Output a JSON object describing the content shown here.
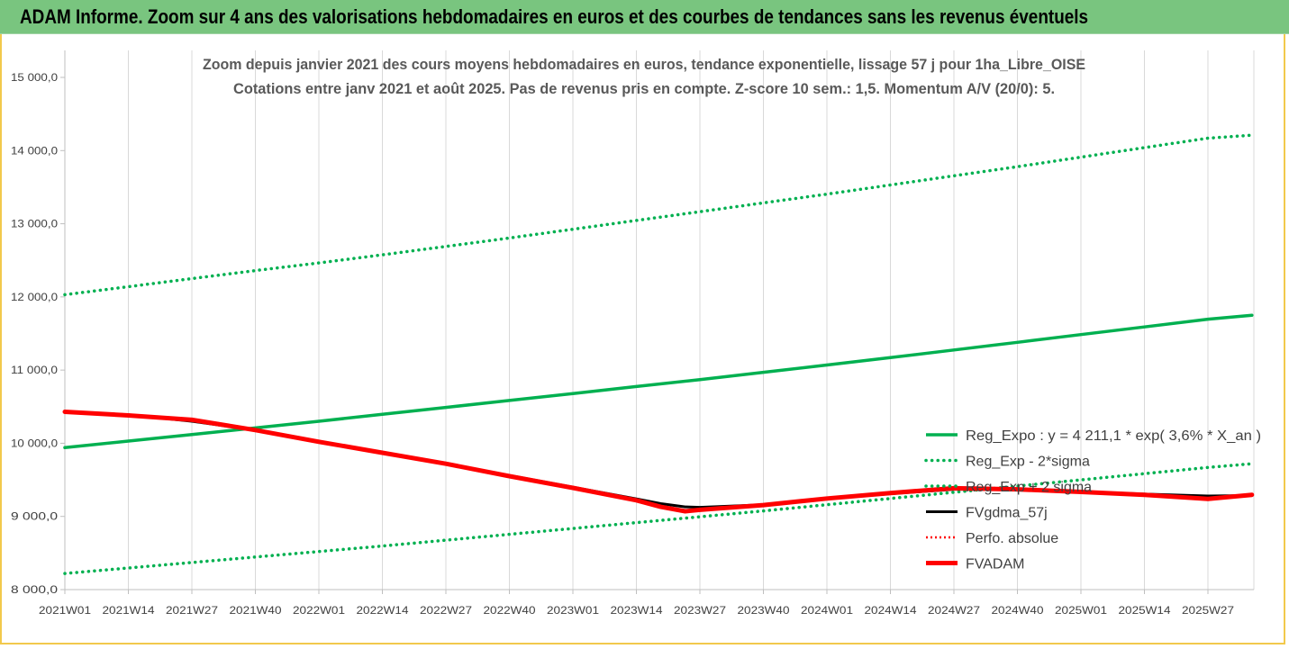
{
  "banner": {
    "title": "ADAM Informe. Zoom sur 4 ans des valorisations hebdomadaires en euros et des courbes de tendances sans les revenus éventuels"
  },
  "colors": {
    "banner_bg": "#79c57f",
    "reg_expo": "#00b050",
    "fv_adam": "#ff0000",
    "fvgdma": "#000000",
    "frame": "#f2c94c"
  },
  "chart_data": {
    "type": "line",
    "title": "Zoom depuis janvier 2021 des cours moyens hebdomadaires en euros, tendance exponentielle, lissage 57 j pour 1ha_Libre_OISE",
    "subtitle": "Cotations entre janv 2021 et août 2025.  Pas de revenus pris en compte. Z-score 10 sem.: 1,5. Momentum A/V (20/0): 5.",
    "xlabel": "",
    "ylabel": "",
    "ylim": [
      8000,
      15000
    ],
    "yticks": [
      "8 000,0",
      "9 000,0",
      "10 000,0",
      "11 000,0",
      "12 000,0",
      "13 000,0",
      "14 000,0",
      "15 000,0"
    ],
    "ytick_values": [
      8000,
      9000,
      10000,
      11000,
      12000,
      13000,
      14000,
      15000
    ],
    "xticks": [
      "2021W01",
      "2021W14",
      "2021W27",
      "2021W40",
      "2022W01",
      "2022W14",
      "2022W27",
      "2022W40",
      "2023W01",
      "2023W14",
      "2023W27",
      "2023W40",
      "2024W01",
      "2024W14",
      "2024W27",
      "2024W40",
      "2025W01",
      "2025W14",
      "2025W27"
    ],
    "grid": "vertical",
    "legend_placement": "bottom-right",
    "series": [
      {
        "name": "Reg_Expo : y = 4 211,1 * exp( 3,6% *  X_an )",
        "style": "solid",
        "x": [
          0,
          13,
          26,
          39,
          52,
          65,
          78,
          91,
          104,
          117,
          130,
          143,
          156,
          169,
          182,
          195,
          208,
          221,
          234,
          243
        ],
        "values": [
          9940,
          10030,
          10120,
          10210,
          10300,
          10395,
          10490,
          10585,
          10680,
          10775,
          10870,
          10970,
          11070,
          11170,
          11275,
          11380,
          11485,
          11590,
          11695,
          11750
        ]
      },
      {
        "name": "Reg_Exp - 2*sigma",
        "style": "dotted",
        "x": [
          0,
          13,
          26,
          39,
          52,
          65,
          78,
          91,
          104,
          117,
          130,
          143,
          156,
          169,
          182,
          195,
          208,
          221,
          234,
          243
        ],
        "values": [
          8220,
          8295,
          8370,
          8445,
          8520,
          8595,
          8675,
          8755,
          8835,
          8915,
          8995,
          9075,
          9160,
          9245,
          9330,
          9415,
          9500,
          9585,
          9670,
          9720
        ]
      },
      {
        "name": "Reg_Exp + 2 sigma",
        "style": "dotted",
        "x": [
          0,
          13,
          26,
          39,
          52,
          65,
          78,
          91,
          104,
          117,
          130,
          143,
          156,
          169,
          182,
          195,
          208,
          221,
          234,
          243
        ],
        "values": [
          12030,
          12140,
          12250,
          12360,
          12465,
          12575,
          12690,
          12805,
          12925,
          13045,
          13165,
          13285,
          13405,
          13530,
          13655,
          13780,
          13910,
          14040,
          14170,
          14210
        ]
      },
      {
        "name": "FVgdma_57j",
        "style": "solid",
        "x": [
          0,
          13,
          26,
          39,
          52,
          65,
          78,
          91,
          104,
          117,
          122,
          127,
          130,
          143,
          156,
          169,
          182,
          195,
          208,
          221,
          234,
          243
        ],
        "values": [
          10430,
          10390,
          10300,
          10180,
          10020,
          9870,
          9720,
          9560,
          9400,
          9240,
          9175,
          9130,
          9125,
          9160,
          9240,
          9310,
          9370,
          9370,
          9340,
          9305,
          9280,
          9285
        ]
      },
      {
        "name": "Perfo. absolue",
        "style": "dotted",
        "x": [],
        "values": []
      },
      {
        "name": "FVADAM",
        "style": "solid",
        "x": [
          0,
          13,
          26,
          39,
          52,
          65,
          78,
          91,
          104,
          117,
          122,
          127,
          130,
          143,
          156,
          169,
          182,
          195,
          208,
          221,
          234,
          243
        ],
        "values": [
          10430,
          10380,
          10320,
          10180,
          10020,
          9870,
          9720,
          9550,
          9390,
          9220,
          9130,
          9070,
          9090,
          9155,
          9245,
          9320,
          9385,
          9370,
          9335,
          9295,
          9240,
          9295
        ]
      }
    ]
  }
}
